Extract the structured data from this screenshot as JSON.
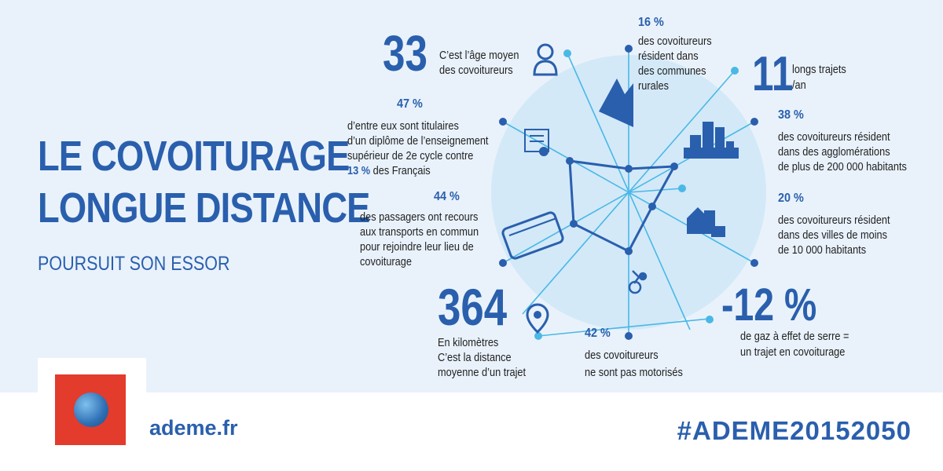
{
  "title": {
    "line1": "LE COVOITURAGE",
    "line2": "LONGUE DISTANCE",
    "subtitle": "POURSUIT SON ESSOR"
  },
  "stats": {
    "age": {
      "value": "33",
      "line1": "C’est l’âge moyen",
      "line2": "des covoitureurs",
      "icon": "person-icon"
    },
    "rural": {
      "pct": "16 %",
      "line1": "des covoitureurs",
      "line2": "résident dans",
      "line3": "des communes",
      "line4": "rurales",
      "icon": "mountain-icon"
    },
    "trips": {
      "value": "11",
      "line1": "longs trajets",
      "line2": "/an"
    },
    "diploma": {
      "pct": "47 %",
      "line1": "d’entre eux sont titulaires",
      "line2": "d’un diplôme de l’enseignement",
      "line3": "supérieur de 2e cycle contre",
      "highlight": "13 %",
      "line4_rest": " des Français",
      "icon": "diploma-icon"
    },
    "agglo": {
      "pct": "38 %",
      "line1": "des covoitureurs résident",
      "line2": "dans des agglomérations",
      "line3": "de plus de 200 000 habitants",
      "icon": "city-icon"
    },
    "transport": {
      "pct": "44 %",
      "line1": "des passagers ont recours",
      "line2": "aux transports en commun",
      "line3": "pour rejoindre leur lieu de",
      "line4": "covoiturage",
      "icon": "bus-icon"
    },
    "small_towns": {
      "pct": "20 %",
      "line1": "des covoitureurs résident",
      "line2": "dans des villes de moins",
      "line3": "de 10 000 habitants",
      "icon": "buildings-icon"
    },
    "distance": {
      "value": "364",
      "line1": "En kilomètres",
      "line2": "C’est la distance",
      "line3": "moyenne d’un trajet",
      "icon": "map-pin-icon"
    },
    "not_motorized": {
      "pct": "42 %",
      "line1": "des covoitureurs",
      "line2": "ne sont pas motorisés",
      "icon": "cyclist-icon"
    },
    "ghg": {
      "value": "-12 %",
      "line1": "de gaz à effet de serre =",
      "line2": "un trajet en covoiturage"
    }
  },
  "footer": {
    "site": "ademe.fr",
    "hashtag": "#ADEME20152050"
  },
  "colors": {
    "brand_blue": "#2a5fad",
    "light_blue": "#4ab8e6",
    "circle": "#d3e9f8",
    "panel": "#e9f2fb",
    "logo_red": "#e33b2c"
  }
}
